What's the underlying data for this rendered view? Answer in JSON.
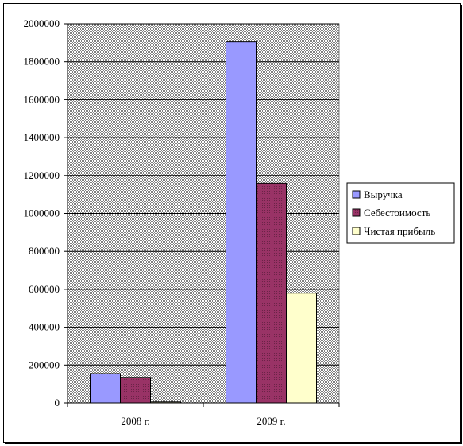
{
  "chart_data": {
    "type": "bar",
    "categories": [
      "2008 г.",
      "2009 г."
    ],
    "series": [
      {
        "name": "Выручка",
        "values": [
          155000,
          1905000
        ],
        "color": "#9999ff"
      },
      {
        "name": "Себестоимость",
        "values": [
          135000,
          1160000
        ],
        "color": "#993366"
      },
      {
        "name": "Чистая прибыль",
        "values": [
          5000,
          580000
        ],
        "color": "#ffffcc"
      }
    ],
    "ylim": [
      0,
      2000000
    ],
    "yticks": [
      "0",
      "200000",
      "400000",
      "600000",
      "800000",
      "1000000",
      "1200000",
      "1400000",
      "1600000",
      "1800000",
      "2000000"
    ],
    "grid": true,
    "legend": "right",
    "plot_background": "#c0c0c0"
  }
}
